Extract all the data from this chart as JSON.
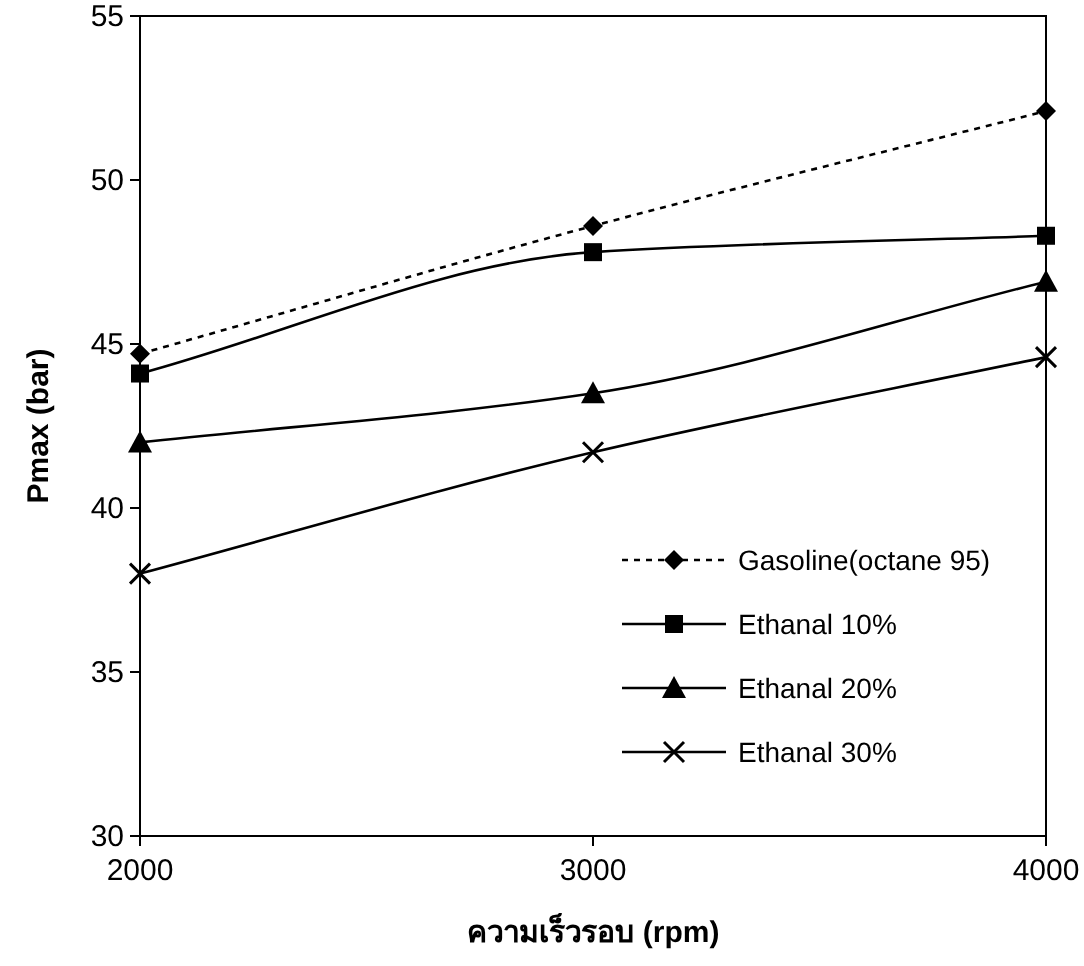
{
  "chart_data": {
    "type": "line",
    "xlabel": "ความเร็วรอบ (rpm)",
    "ylabel": "Pmax (bar)",
    "x": [
      2000,
      3000,
      4000
    ],
    "xlim": [
      2000,
      4000
    ],
    "xticks": [
      2000,
      3000,
      4000
    ],
    "ylim": [
      30,
      55
    ],
    "yticks": [
      30,
      35,
      40,
      45,
      50,
      55
    ],
    "grid": false,
    "legend": "bottom right",
    "series": [
      {
        "name": "Gasoline(octane 95)",
        "color": "#000000",
        "marker": "diamond",
        "line_style": "dotted",
        "values": [
          44.7,
          48.6,
          52.1
        ]
      },
      {
        "name": "Ethanal 10%",
        "color": "#000000",
        "marker": "square",
        "line_style": "solid",
        "values": [
          44.1,
          47.8,
          48.3
        ]
      },
      {
        "name": "Ethanal 20%",
        "color": "#000000",
        "marker": "triangle",
        "line_style": "solid",
        "values": [
          42.0,
          43.5,
          46.9
        ]
      },
      {
        "name": "Ethanal 30%",
        "color": "#000000",
        "marker": "cross",
        "line_style": "solid",
        "values": [
          38.0,
          41.7,
          44.6
        ]
      }
    ]
  }
}
